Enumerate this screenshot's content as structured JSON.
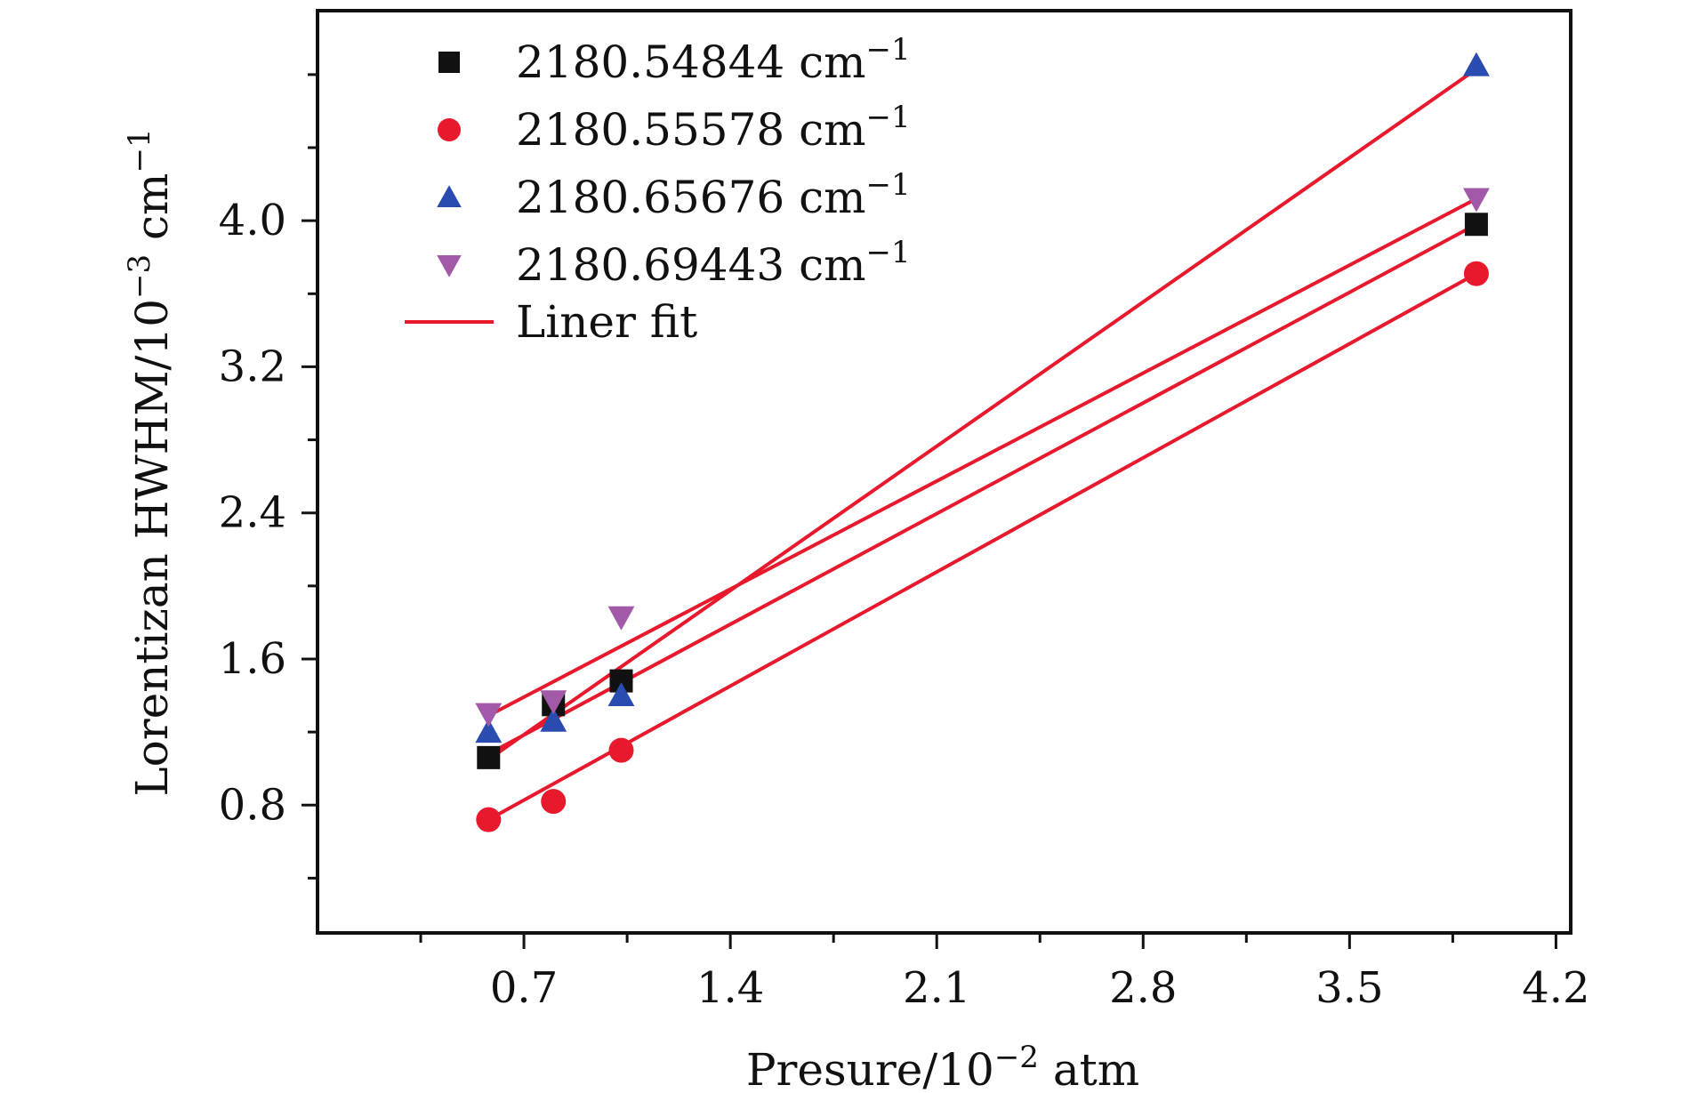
{
  "chart_data": {
    "type": "scatter",
    "xlabel": "Presure/10",
    "xlabel_exp": "−2",
    "xlabel_unit": " atm",
    "ylabel": "Lorentizan HWHM/10",
    "ylabel_exp": "−3",
    "ylabel_unit": " cm",
    "ylabel_unit_exp": "−1",
    "xlim": [
      0.0,
      4.25
    ],
    "ylim": [
      0.1,
      5.15
    ],
    "x_ticks": [
      0.7,
      1.4,
      2.1,
      2.8,
      3.5,
      4.2
    ],
    "x_tick_labels": [
      "0.7",
      "1.4",
      "2.1",
      "2.8",
      "3.5",
      "4.2"
    ],
    "y_ticks": [
      0.8,
      1.6,
      2.4,
      3.2,
      4.0
    ],
    "y_tick_labels": [
      "0.8",
      "1.6",
      "2.4",
      "3.2",
      "4.0"
    ],
    "legend_position": "top-left",
    "x": [
      0.58,
      0.8,
      1.03,
      3.93
    ],
    "series": [
      {
        "name": "2180.54844",
        "unit": " cm",
        "unit_exp": "−1",
        "marker": "square",
        "color": "#111111",
        "values": [
          1.06,
          1.35,
          1.48,
          3.98
        ],
        "fit": [
          1.08,
          3.98
        ]
      },
      {
        "name": "2180.55578",
        "unit": " cm",
        "unit_exp": "−1",
        "marker": "circle",
        "color": "#e8192c",
        "values": [
          0.72,
          0.82,
          1.1,
          3.71
        ],
        "fit": [
          0.72,
          3.71
        ]
      },
      {
        "name": "2180.65676",
        "unit": " cm",
        "unit_exp": "−1",
        "marker": "triangle-up",
        "color": "#2a4bb0",
        "values": [
          1.2,
          1.26,
          1.4,
          4.85
        ],
        "fit": [
          1.05,
          4.83
        ]
      },
      {
        "name": "2180.69443",
        "unit": " cm",
        "unit_exp": "−1",
        "marker": "triangle-down",
        "color": "#a25aa8",
        "values": [
          1.3,
          1.37,
          1.83,
          4.12
        ],
        "fit": [
          1.29,
          4.12
        ]
      }
    ],
    "fit_legend": "Liner fit",
    "fit_color": "#e8192c"
  }
}
